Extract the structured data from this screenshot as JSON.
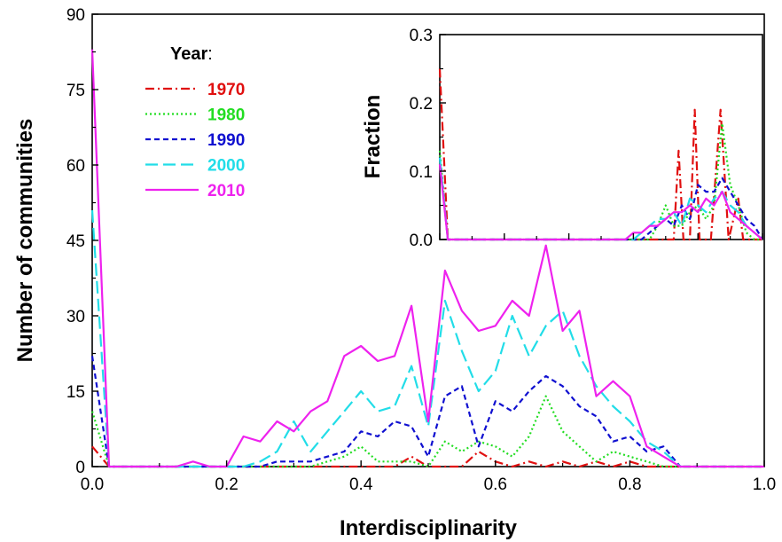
{
  "chart_data": [
    {
      "type": "line",
      "xlabel": "Interdisciplinarity",
      "ylabel": "Number of communities",
      "xlim": [
        0,
        1.0
      ],
      "ylim": [
        0,
        90
      ],
      "x_ticks": [
        "0.0",
        "0.2",
        "0.4",
        "0.6",
        "0.8",
        "1.0"
      ],
      "y_ticks": [
        "0",
        "15",
        "30",
        "45",
        "60",
        "75",
        "90"
      ],
      "legend_title": "Year",
      "legend_suffix": ":",
      "legend_position": "top-left",
      "series": [
        {
          "name": "1970",
          "color": "#e01010",
          "dash": "dashdot",
          "points": [
            [
              0.0,
              4
            ],
            [
              0.025,
              0
            ],
            [
              0.45,
              0
            ],
            [
              0.475,
              2
            ],
            [
              0.5,
              0
            ],
            [
              0.55,
              0
            ],
            [
              0.575,
              3
            ],
            [
              0.6,
              1
            ],
            [
              0.625,
              0
            ],
            [
              0.65,
              1
            ],
            [
              0.675,
              0
            ],
            [
              0.7,
              1
            ],
            [
              0.725,
              0
            ],
            [
              0.75,
              1
            ],
            [
              0.775,
              0
            ],
            [
              0.8,
              1
            ],
            [
              0.825,
              0
            ],
            [
              1.0,
              0
            ]
          ]
        },
        {
          "name": "1980",
          "color": "#22dd22",
          "dash": "dotted",
          "points": [
            [
              0.0,
              11
            ],
            [
              0.025,
              0
            ],
            [
              0.325,
              0
            ],
            [
              0.35,
              1
            ],
            [
              0.375,
              2
            ],
            [
              0.4,
              4
            ],
            [
              0.425,
              1
            ],
            [
              0.45,
              1
            ],
            [
              0.475,
              1
            ],
            [
              0.5,
              0
            ],
            [
              0.525,
              5
            ],
            [
              0.55,
              3
            ],
            [
              0.575,
              5
            ],
            [
              0.6,
              4
            ],
            [
              0.625,
              2
            ],
            [
              0.65,
              6
            ],
            [
              0.675,
              14
            ],
            [
              0.7,
              7
            ],
            [
              0.725,
              4
            ],
            [
              0.75,
              1
            ],
            [
              0.775,
              3
            ],
            [
              0.8,
              2
            ],
            [
              0.825,
              1
            ],
            [
              0.85,
              0
            ],
            [
              1.0,
              0
            ]
          ]
        },
        {
          "name": "1990",
          "color": "#1010d0",
          "dash": "short",
          "points": [
            [
              0.0,
              22
            ],
            [
              0.025,
              0
            ],
            [
              0.25,
              0
            ],
            [
              0.275,
              1
            ],
            [
              0.3,
              1
            ],
            [
              0.325,
              1
            ],
            [
              0.35,
              2
            ],
            [
              0.375,
              3
            ],
            [
              0.4,
              7
            ],
            [
              0.425,
              6
            ],
            [
              0.45,
              9
            ],
            [
              0.475,
              8
            ],
            [
              0.5,
              2
            ],
            [
              0.525,
              14
            ],
            [
              0.55,
              16
            ],
            [
              0.575,
              4
            ],
            [
              0.6,
              13
            ],
            [
              0.625,
              11
            ],
            [
              0.65,
              15
            ],
            [
              0.675,
              18
            ],
            [
              0.7,
              16
            ],
            [
              0.725,
              12
            ],
            [
              0.75,
              10
            ],
            [
              0.775,
              5
            ],
            [
              0.8,
              6
            ],
            [
              0.825,
              3
            ],
            [
              0.85,
              4
            ],
            [
              0.875,
              0
            ],
            [
              1.0,
              0
            ]
          ]
        },
        {
          "name": "2000",
          "color": "#22dde8",
          "dash": "long",
          "points": [
            [
              0.0,
              51
            ],
            [
              0.025,
              0
            ],
            [
              0.225,
              0
            ],
            [
              0.25,
              1
            ],
            [
              0.275,
              3
            ],
            [
              0.3,
              9
            ],
            [
              0.325,
              3
            ],
            [
              0.35,
              7
            ],
            [
              0.375,
              11
            ],
            [
              0.4,
              15
            ],
            [
              0.425,
              11
            ],
            [
              0.45,
              12
            ],
            [
              0.475,
              20
            ],
            [
              0.5,
              8
            ],
            [
              0.525,
              33
            ],
            [
              0.55,
              23
            ],
            [
              0.575,
              15
            ],
            [
              0.6,
              19
            ],
            [
              0.625,
              30
            ],
            [
              0.65,
              22
            ],
            [
              0.675,
              28
            ],
            [
              0.7,
              31
            ],
            [
              0.725,
              22
            ],
            [
              0.75,
              16
            ],
            [
              0.775,
              12
            ],
            [
              0.8,
              9
            ],
            [
              0.825,
              5
            ],
            [
              0.85,
              3
            ],
            [
              0.875,
              0
            ],
            [
              1.0,
              0
            ]
          ]
        },
        {
          "name": "2010",
          "color": "#ee22ee",
          "dash": "solid",
          "points": [
            [
              0.0,
              83
            ],
            [
              0.025,
              0
            ],
            [
              0.125,
              0
            ],
            [
              0.15,
              1
            ],
            [
              0.175,
              0
            ],
            [
              0.2,
              0
            ],
            [
              0.225,
              6
            ],
            [
              0.25,
              5
            ],
            [
              0.275,
              9
            ],
            [
              0.3,
              7
            ],
            [
              0.325,
              11
            ],
            [
              0.35,
              13
            ],
            [
              0.375,
              22
            ],
            [
              0.4,
              24
            ],
            [
              0.425,
              21
            ],
            [
              0.45,
              22
            ],
            [
              0.475,
              32
            ],
            [
              0.5,
              9
            ],
            [
              0.525,
              39
            ],
            [
              0.55,
              31
            ],
            [
              0.575,
              27
            ],
            [
              0.6,
              28
            ],
            [
              0.625,
              33
            ],
            [
              0.65,
              30
            ],
            [
              0.675,
              44
            ],
            [
              0.7,
              27
            ],
            [
              0.725,
              31
            ],
            [
              0.75,
              14
            ],
            [
              0.775,
              17
            ],
            [
              0.8,
              14
            ],
            [
              0.825,
              4
            ],
            [
              0.85,
              2
            ],
            [
              0.875,
              0
            ],
            [
              1.0,
              0
            ]
          ]
        }
      ]
    },
    {
      "type": "line",
      "inset": true,
      "xlabel": "",
      "ylabel": "Fraction",
      "xlim": [
        0,
        1.0
      ],
      "ylim": [
        0,
        0.3
      ],
      "y_ticks": [
        "0.0",
        "0.1",
        "0.2",
        "0.3"
      ],
      "series": [
        {
          "name": "1970",
          "color": "#e01010",
          "dash": "dashdot",
          "points": [
            [
              0.0,
              0.25
            ],
            [
              0.025,
              0
            ],
            [
              0.725,
              0
            ],
            [
              0.74,
              0.13
            ],
            [
              0.755,
              0
            ],
            [
              0.775,
              0
            ],
            [
              0.79,
              0.19
            ],
            [
              0.805,
              0
            ],
            [
              0.825,
              0
            ],
            [
              0.84,
              0
            ],
            [
              0.87,
              0.19
            ],
            [
              0.895,
              0
            ],
            [
              0.925,
              0.06
            ],
            [
              0.94,
              0
            ],
            [
              1.0,
              0
            ]
          ]
        },
        {
          "name": "1980",
          "color": "#22dd22",
          "dash": "dotted",
          "points": [
            [
              0.0,
              0.13
            ],
            [
              0.025,
              0
            ],
            [
              0.65,
              0
            ],
            [
              0.675,
              0.02
            ],
            [
              0.7,
              0.05
            ],
            [
              0.725,
              0.02
            ],
            [
              0.75,
              0.02
            ],
            [
              0.775,
              0.04
            ],
            [
              0.8,
              0.05
            ],
            [
              0.825,
              0.03
            ],
            [
              0.85,
              0.05
            ],
            [
              0.875,
              0.17
            ],
            [
              0.9,
              0.08
            ],
            [
              0.925,
              0.05
            ],
            [
              0.95,
              0.01
            ],
            [
              0.975,
              0
            ],
            [
              1.0,
              0
            ]
          ]
        },
        {
          "name": "1990",
          "color": "#1010d0",
          "dash": "short",
          "points": [
            [
              0.0,
              0.12
            ],
            [
              0.025,
              0
            ],
            [
              0.625,
              0
            ],
            [
              0.65,
              0.01
            ],
            [
              0.675,
              0.02
            ],
            [
              0.7,
              0.03
            ],
            [
              0.725,
              0.02
            ],
            [
              0.75,
              0.05
            ],
            [
              0.775,
              0.03
            ],
            [
              0.8,
              0.08
            ],
            [
              0.825,
              0.07
            ],
            [
              0.85,
              0.07
            ],
            [
              0.875,
              0.09
            ],
            [
              0.9,
              0.07
            ],
            [
              0.925,
              0.05
            ],
            [
              0.95,
              0.03
            ],
            [
              0.975,
              0.02
            ],
            [
              1.0,
              0
            ]
          ]
        },
        {
          "name": "2000",
          "color": "#22dde8",
          "dash": "long",
          "points": [
            [
              0.0,
              0.12
            ],
            [
              0.025,
              0
            ],
            [
              0.6,
              0
            ],
            [
              0.625,
              0.01
            ],
            [
              0.65,
              0.02
            ],
            [
              0.675,
              0.03
            ],
            [
              0.7,
              0.03
            ],
            [
              0.725,
              0.04
            ],
            [
              0.75,
              0.02
            ],
            [
              0.775,
              0.06
            ],
            [
              0.8,
              0.05
            ],
            [
              0.825,
              0.04
            ],
            [
              0.85,
              0.06
            ],
            [
              0.875,
              0.07
            ],
            [
              0.9,
              0.05
            ],
            [
              0.925,
              0.04
            ],
            [
              0.95,
              0.02
            ],
            [
              0.975,
              0.01
            ],
            [
              1.0,
              0
            ]
          ]
        },
        {
          "name": "2010",
          "color": "#ee22ee",
          "dash": "solid",
          "points": [
            [
              0.0,
              0.11
            ],
            [
              0.025,
              0
            ],
            [
              0.575,
              0
            ],
            [
              0.6,
              0.01
            ],
            [
              0.625,
              0.01
            ],
            [
              0.65,
              0.02
            ],
            [
              0.675,
              0.02
            ],
            [
              0.7,
              0.03
            ],
            [
              0.725,
              0.04
            ],
            [
              0.75,
              0.04
            ],
            [
              0.775,
              0.05
            ],
            [
              0.8,
              0.04
            ],
            [
              0.825,
              0.06
            ],
            [
              0.85,
              0.05
            ],
            [
              0.875,
              0.07
            ],
            [
              0.9,
              0.04
            ],
            [
              0.925,
              0.03
            ],
            [
              0.95,
              0.02
            ],
            [
              0.975,
              0.01
            ],
            [
              1.0,
              0
            ]
          ]
        }
      ]
    }
  ]
}
